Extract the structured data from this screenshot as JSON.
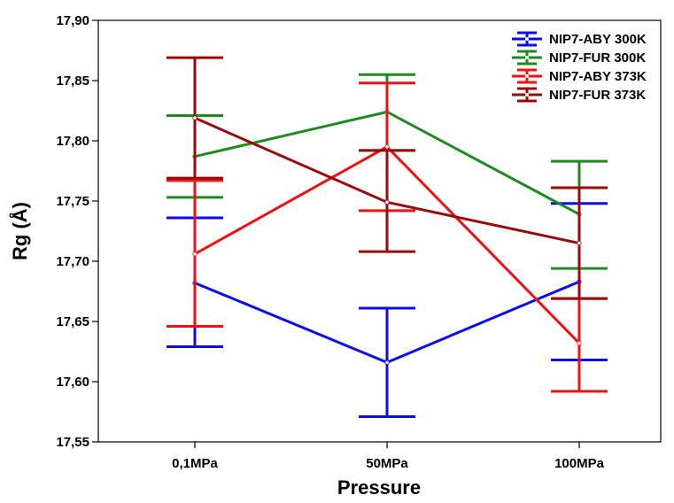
{
  "chart_data": {
    "type": "line",
    "title": "",
    "xlabel": "Pressure",
    "ylabel": "Rg (Å)",
    "categories": [
      "0,1MPa",
      "50MPa",
      "100MPa"
    ],
    "ylim": [
      17.55,
      17.9
    ],
    "yticks": [
      "17,55",
      "17,60",
      "17,65",
      "17,70",
      "17,75",
      "17,80",
      "17,85",
      "17,90"
    ],
    "ytick_values": [
      17.55,
      17.6,
      17.65,
      17.7,
      17.75,
      17.8,
      17.85,
      17.9
    ],
    "grid": false,
    "legend_position": "top-right",
    "series": [
      {
        "name": "NIP7-ABY 300K",
        "color": "#0b0bf0",
        "values": [
          17.682,
          17.616,
          17.683
        ],
        "err_low": [
          17.629,
          17.571,
          17.618
        ],
        "err_high": [
          17.736,
          17.661,
          17.748
        ]
      },
      {
        "name": "NIP7-FUR 300K",
        "color": "#1f8a1f",
        "values": [
          17.787,
          17.824,
          17.739
        ],
        "err_low": [
          17.753,
          17.792,
          17.694
        ],
        "err_high": [
          17.821,
          17.855,
          17.783
        ]
      },
      {
        "name": "NIP7-ABY 373K",
        "color": "#ee1111",
        "values": [
          17.706,
          17.795,
          17.632
        ],
        "err_low": [
          17.646,
          17.742,
          17.592
        ],
        "err_high": [
          17.767,
          17.848,
          17.669
        ]
      },
      {
        "name": "NIP7-FUR 373K",
        "color": "#9b0a0a",
        "values": [
          17.819,
          17.749,
          17.715
        ],
        "err_low": [
          17.769,
          17.708,
          17.669
        ],
        "err_high": [
          17.869,
          17.792,
          17.761
        ]
      }
    ]
  }
}
